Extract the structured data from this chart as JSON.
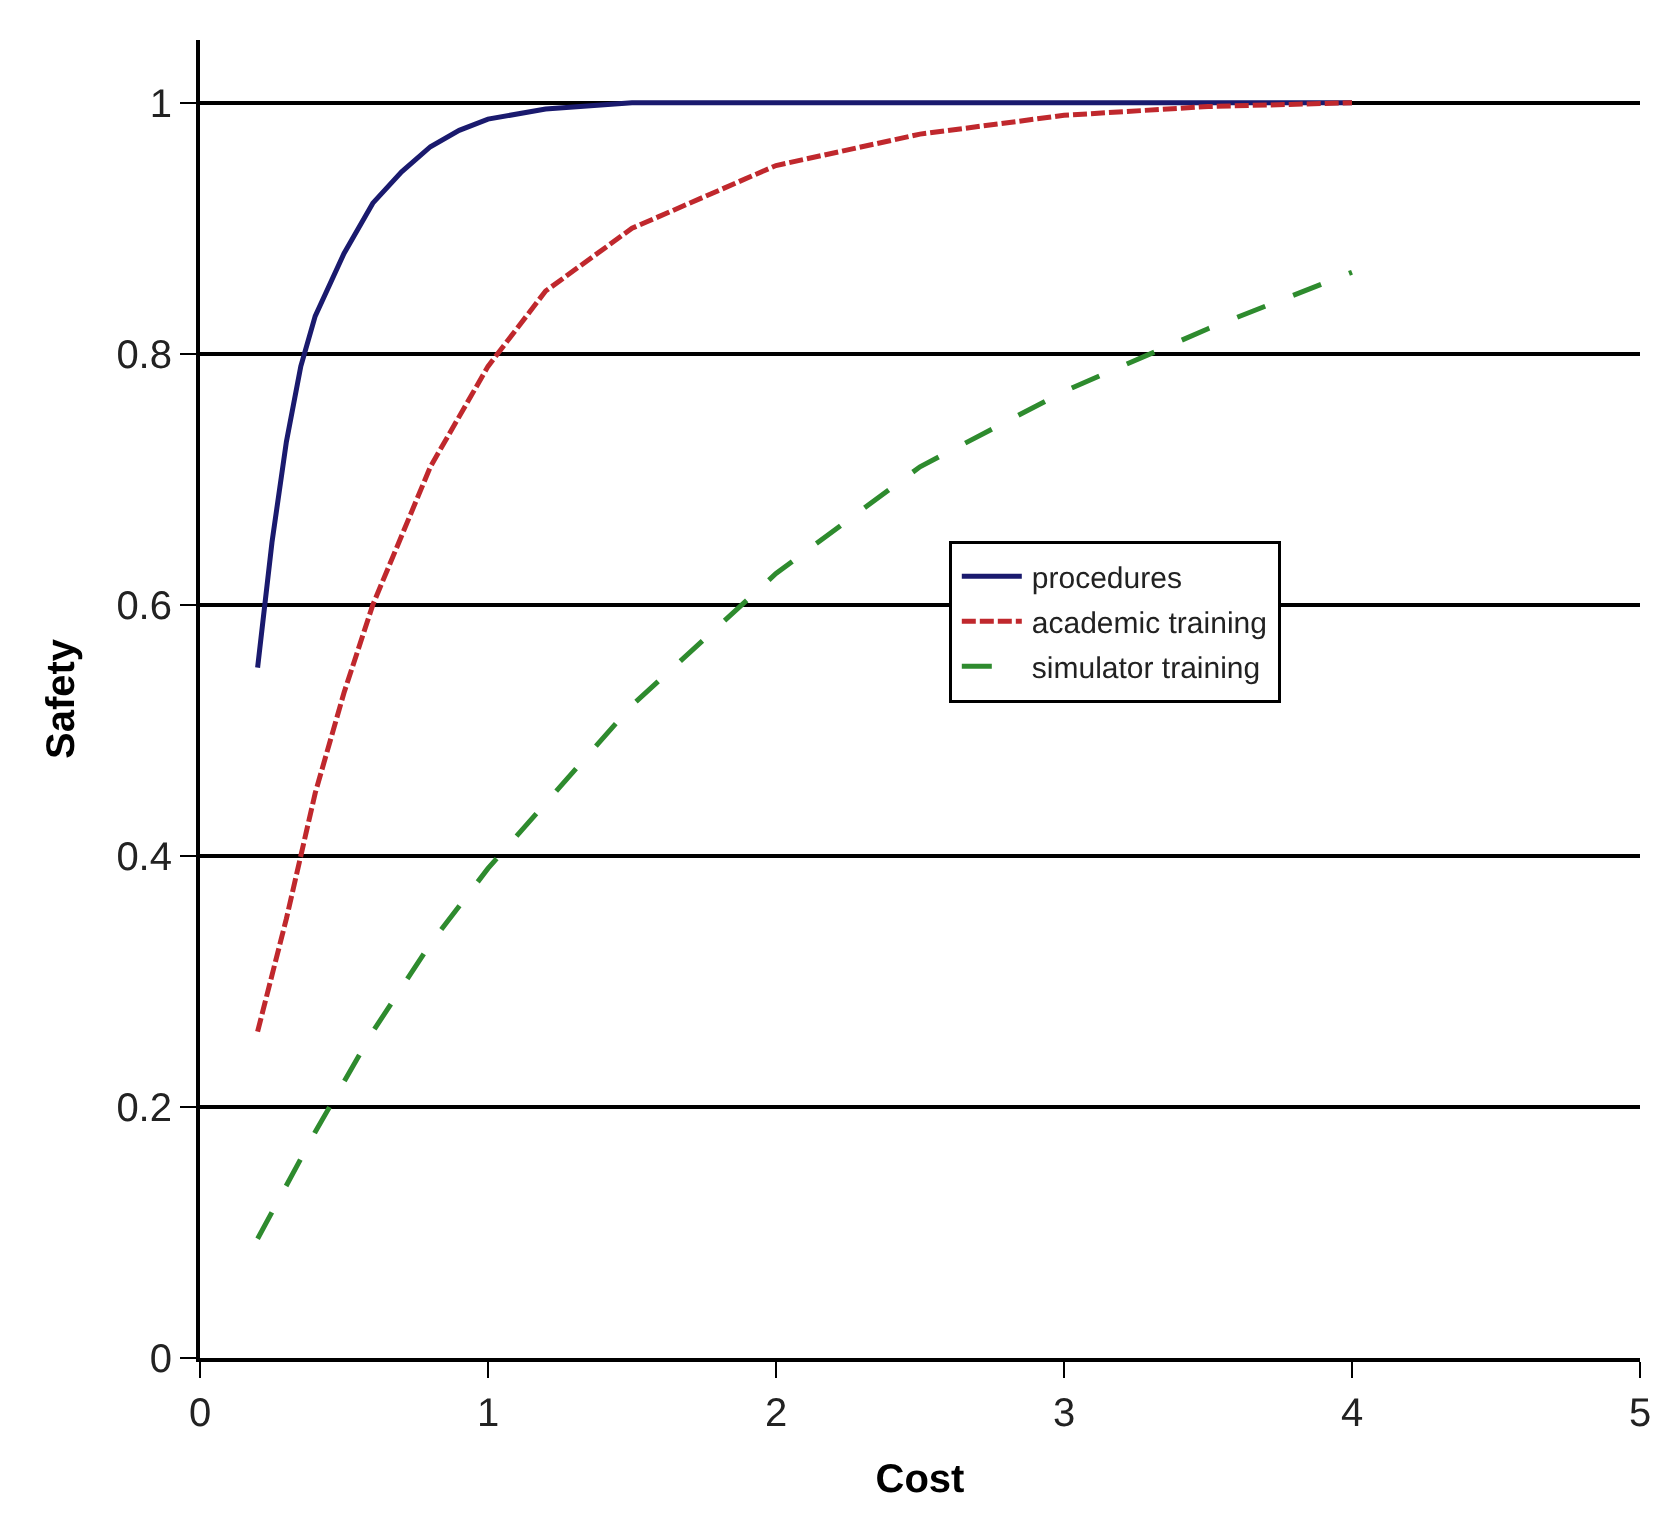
{
  "chart_data": {
    "type": "line",
    "xlabel": "Cost",
    "ylabel": "Safety",
    "xlim": [
      0,
      5
    ],
    "xticks": [
      0,
      1,
      2,
      3,
      4,
      5
    ],
    "ylim": [
      0,
      1.05
    ],
    "yticks": [
      0,
      0.2,
      0.4,
      0.6,
      0.8,
      1
    ],
    "grid": "y",
    "legend": "right",
    "marker": "none",
    "series": [
      {
        "name": "procedures",
        "color": "#1a1a6e",
        "line_style": "solid",
        "x": [
          0.2,
          0.25,
          0.3,
          0.35,
          0.4,
          0.5,
          0.6,
          0.7,
          0.8,
          0.9,
          1.0,
          1.2,
          1.5,
          4.0
        ],
        "values": [
          0.55,
          0.65,
          0.73,
          0.79,
          0.83,
          0.88,
          0.92,
          0.945,
          0.965,
          0.978,
          0.987,
          0.995,
          1.0,
          1.0
        ]
      },
      {
        "name": "academic training",
        "color": "#c0282d",
        "line_style": "dotted",
        "x": [
          0.2,
          0.3,
          0.4,
          0.5,
          0.6,
          0.8,
          1.0,
          1.2,
          1.5,
          2.0,
          2.5,
          3.0,
          3.5,
          4.0
        ],
        "values": [
          0.26,
          0.35,
          0.45,
          0.53,
          0.6,
          0.71,
          0.79,
          0.85,
          0.9,
          0.95,
          0.975,
          0.99,
          0.997,
          1.0
        ]
      },
      {
        "name": "simulator training",
        "color": "#2e8b2e",
        "line_style": "dashed",
        "x": [
          0.2,
          0.4,
          0.6,
          0.8,
          1.0,
          1.5,
          2.0,
          2.5,
          3.0,
          3.5,
          4.0
        ],
        "values": [
          0.095,
          0.18,
          0.26,
          0.33,
          0.39,
          0.52,
          0.625,
          0.71,
          0.77,
          0.82,
          0.865
        ]
      }
    ]
  }
}
